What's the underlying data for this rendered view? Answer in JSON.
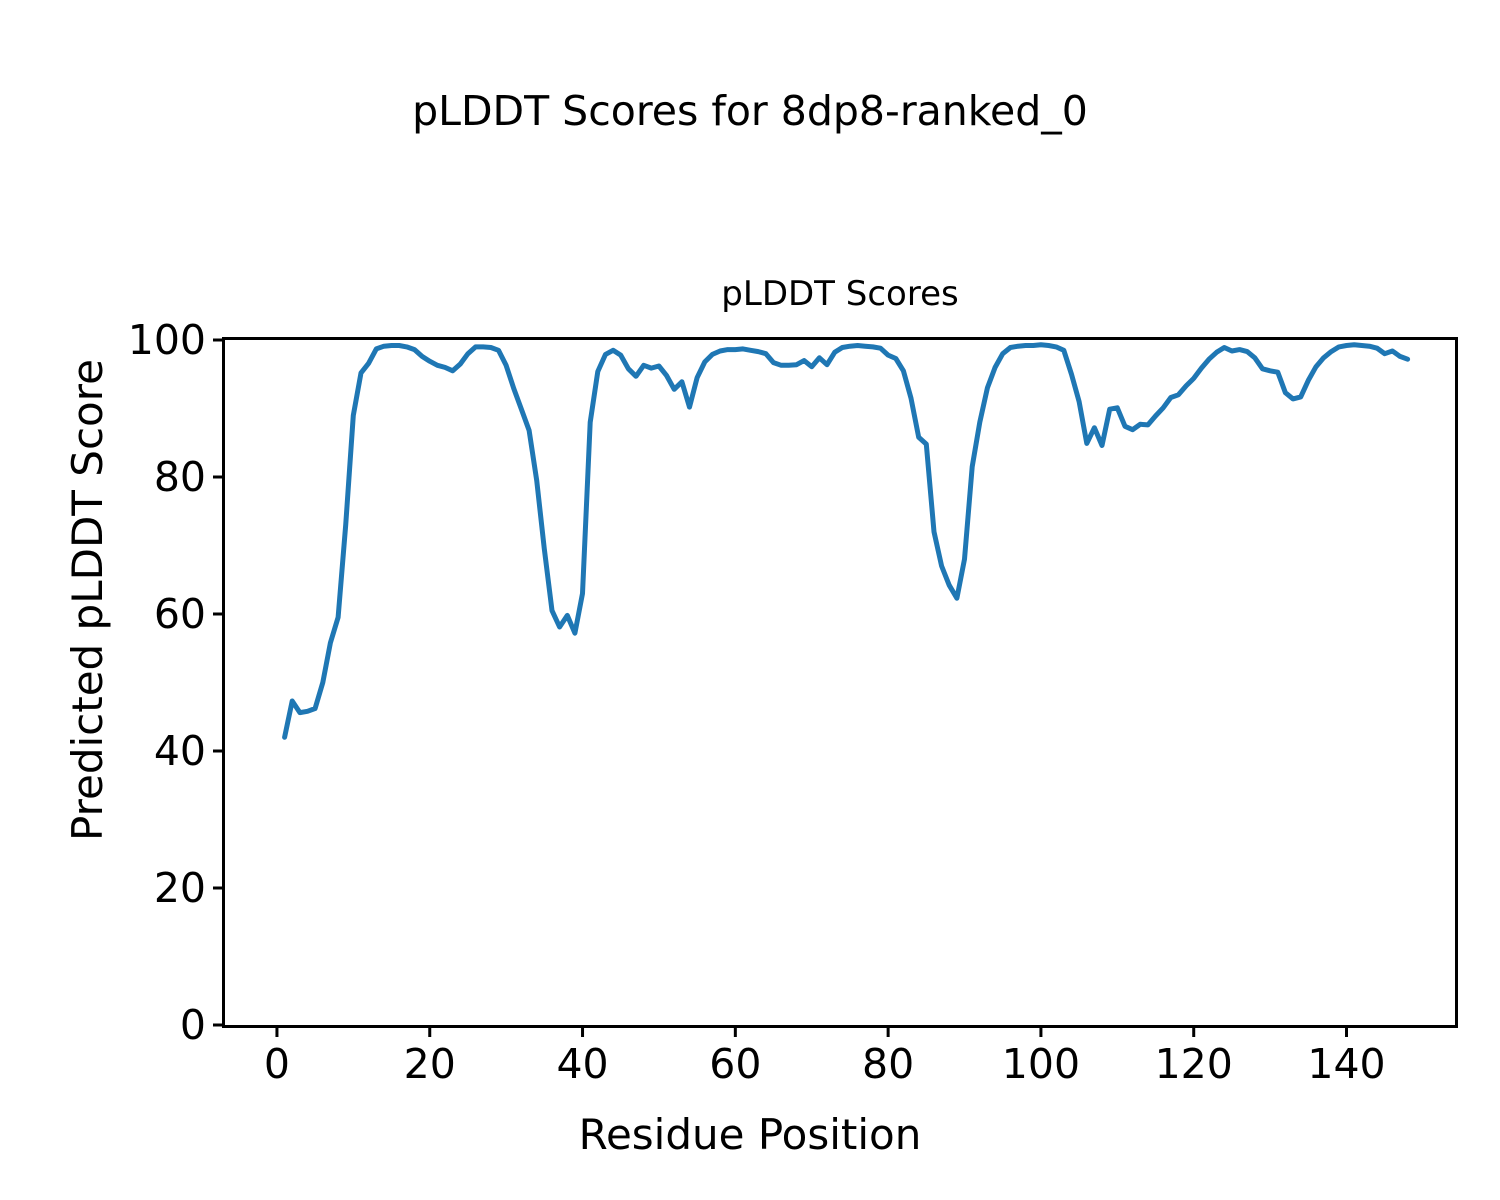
{
  "figure": {
    "suptitle": "pLDDT Scores for 8dp8-ranked_0",
    "xlabel": "Residue Position",
    "ylabel": "Predicted pLDDT Score",
    "background": "#ffffff"
  },
  "chart_data": {
    "type": "line",
    "title": "pLDDT Scores",
    "xlabel": "Residue Position",
    "ylabel": "Predicted pLDDT Score",
    "grid": false,
    "legend": null,
    "xlim": [
      -6.8,
      154.2
    ],
    "ylim": [
      0,
      100
    ],
    "x_ticks": [
      0,
      20,
      40,
      60,
      80,
      100,
      120,
      140
    ],
    "y_ticks": [
      0,
      20,
      40,
      60,
      80,
      100
    ],
    "frame_color": "#000000",
    "series": [
      {
        "name": "pLDDT",
        "color": "#1f77b4",
        "line_width": 5,
        "x": [
          1,
          2,
          3,
          4,
          5,
          6,
          7,
          8,
          9,
          10,
          11,
          12,
          13,
          14,
          15,
          16,
          17,
          18,
          19,
          20,
          21,
          22,
          23,
          24,
          25,
          26,
          27,
          28,
          29,
          30,
          31,
          32,
          33,
          34,
          35,
          36,
          37,
          38,
          39,
          40,
          41,
          42,
          43,
          44,
          45,
          46,
          47,
          48,
          49,
          50,
          51,
          52,
          53,
          54,
          55,
          56,
          57,
          58,
          59,
          60,
          61,
          62,
          63,
          64,
          65,
          66,
          67,
          68,
          69,
          70,
          71,
          72,
          73,
          74,
          75,
          76,
          77,
          78,
          79,
          80,
          81,
          82,
          83,
          84,
          85,
          86,
          87,
          88,
          89,
          90,
          91,
          92,
          93,
          94,
          95,
          96,
          97,
          98,
          99,
          100,
          101,
          102,
          103,
          104,
          105,
          106,
          107,
          108,
          109,
          110,
          111,
          112,
          113,
          114,
          115,
          116,
          117,
          118,
          119,
          120,
          121,
          122,
          123,
          124,
          125,
          126,
          127,
          128,
          129,
          130,
          131,
          132,
          133,
          134,
          135,
          136,
          137,
          138,
          139,
          140,
          141,
          142,
          143,
          144,
          145,
          146,
          147,
          148
        ],
        "y": [
          42.0,
          47.3,
          45.6,
          45.8,
          46.2,
          50.0,
          55.8,
          59.5,
          73.0,
          89.0,
          95.2,
          96.6,
          98.7,
          99.1,
          99.2,
          99.2,
          99.0,
          98.6,
          97.6,
          96.9,
          96.3,
          96.0,
          95.5,
          96.5,
          98.0,
          99.0,
          99.0,
          98.9,
          98.5,
          96.3,
          92.9,
          89.9,
          86.8,
          79.5,
          69.5,
          60.5,
          58.1,
          59.8,
          57.2,
          63.0,
          88.0,
          95.4,
          97.9,
          98.5,
          97.8,
          95.8,
          94.7,
          96.3,
          95.9,
          96.2,
          94.8,
          92.8,
          93.9,
          90.2,
          94.5,
          96.8,
          97.9,
          98.4,
          98.6,
          98.6,
          98.7,
          98.5,
          98.3,
          98.0,
          96.7,
          96.3,
          96.3,
          96.4,
          97.0,
          96.1,
          97.4,
          96.4,
          98.2,
          98.9,
          99.1,
          99.2,
          99.1,
          99.0,
          98.8,
          97.8,
          97.3,
          95.5,
          91.5,
          85.8,
          84.8,
          72.0,
          67.0,
          64.2,
          62.3,
          68.0,
          81.5,
          88.0,
          93.0,
          96.0,
          98.0,
          98.9,
          99.1,
          99.2,
          99.2,
          99.3,
          99.2,
          99.0,
          98.5,
          95.0,
          91.0,
          84.9,
          87.2,
          84.6,
          89.9,
          90.1,
          87.4,
          86.9,
          87.7,
          87.6,
          88.9,
          90.1,
          91.6,
          92.0,
          93.3,
          94.4,
          95.9,
          97.2,
          98.2,
          98.9,
          98.4,
          98.6,
          98.3,
          97.4,
          95.8,
          95.5,
          95.3,
          92.3,
          91.4,
          91.7,
          94.1,
          96.1,
          97.4,
          98.3,
          99.0,
          99.2,
          99.3,
          99.2,
          99.1,
          98.8,
          98.0,
          98.4,
          97.6,
          97.2
        ]
      }
    ]
  }
}
